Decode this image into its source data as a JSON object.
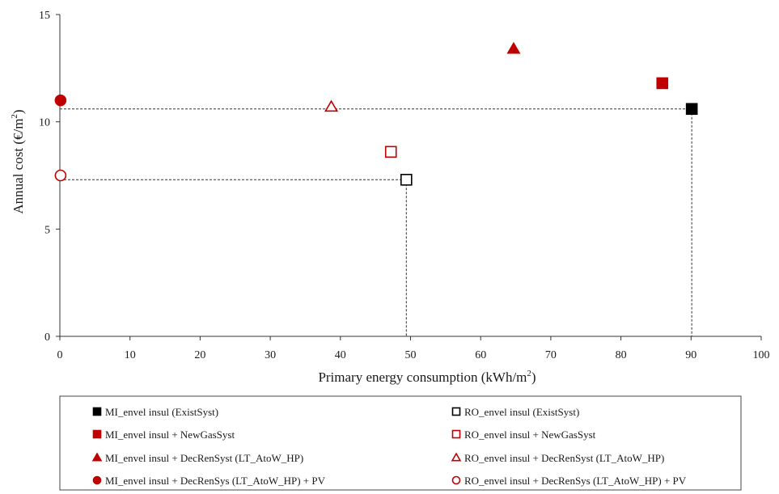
{
  "chart_data": {
    "type": "scatter",
    "xlabel": "Primary energy consumption (kWh/m",
    "xlabel_sup": "2",
    "xlabel_end": ")",
    "ylabel": "Annual cost (€/m",
    "ylabel_sup": "2",
    "ylabel_end": ")",
    "xlim": [
      0,
      100
    ],
    "ylim": [
      0,
      15
    ],
    "xticks": [
      0,
      10,
      20,
      30,
      40,
      50,
      60,
      70,
      80,
      90,
      100
    ],
    "yticks": [
      0,
      5,
      10,
      15
    ],
    "grid": false,
    "legend_position": "bottom",
    "series": [
      {
        "name": "MI_envel insul (ExistSyst)",
        "marker": "square",
        "fill": "#000000",
        "stroke": "#000000",
        "x": 90.1,
        "y": 10.6
      },
      {
        "name": "RO_envel insul (ExistSyst)",
        "marker": "square",
        "fill": "none",
        "stroke": "#000000",
        "x": 49.4,
        "y": 7.3
      },
      {
        "name": "MI_envel insul + NewGasSyst",
        "marker": "square",
        "fill": "#c00000",
        "stroke": "#c00000",
        "x": 85.9,
        "y": 11.8
      },
      {
        "name": "RO_envel insul + NewGasSyst",
        "marker": "square",
        "fill": "none",
        "stroke": "#c00000",
        "x": 47.2,
        "y": 8.6
      },
      {
        "name": "MI_envel insul + DecRenSyst (LT_AtoW_HP)",
        "marker": "triangle",
        "fill": "#c00000",
        "stroke": "#c00000",
        "x": 64.7,
        "y": 13.4
      },
      {
        "name": "RO_envel insul + DecRenSyst (LT_AtoW_HP)",
        "marker": "triangle",
        "fill": "none",
        "stroke": "#c00000",
        "x": 38.7,
        "y": 10.7
      },
      {
        "name": "MI_envel insul + DecRenSys (LT_AtoW_HP) + PV",
        "marker": "circle",
        "fill": "#c00000",
        "stroke": "#c00000",
        "x": 0.1,
        "y": 11.0
      },
      {
        "name": "RO_envel insul + DecRenSys (LT_AtoW_HP) + PV",
        "marker": "circle",
        "fill": "none",
        "stroke": "#c00000",
        "x": 0.1,
        "y": 7.5
      }
    ],
    "reference_lines": [
      {
        "x": 90.1,
        "y": 10.6
      },
      {
        "x": 49.4,
        "y": 7.3
      }
    ]
  }
}
